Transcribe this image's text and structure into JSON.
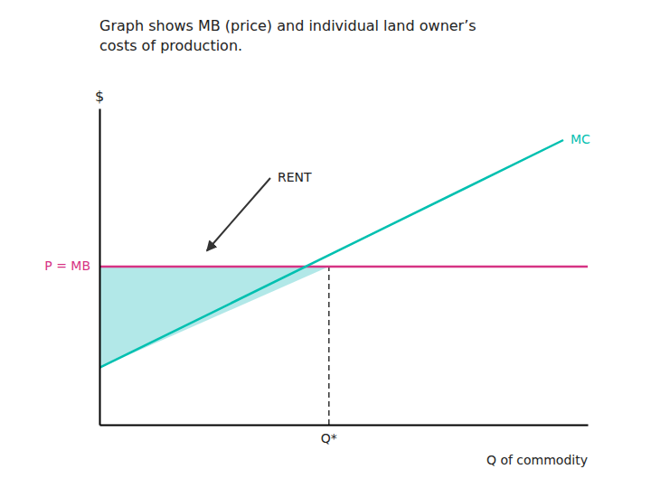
{
  "chart_data": {
    "type": "line",
    "title": [
      "Graph shows MB (price) and individual land owner’s",
      "costs of production."
    ],
    "x_label": "Q of commodity",
    "y_label": "$",
    "xlim": [
      0,
      10
    ],
    "ylim": [
      0,
      10
    ],
    "tick_labels": false,
    "series": [
      {
        "name": "P = MB",
        "color": "#d63384",
        "line_style": "solid",
        "x": [
          0,
          10
        ],
        "values": [
          5.0,
          5.0
        ]
      },
      {
        "name": "MC",
        "color": "#00c0b0",
        "line_style": "solid",
        "x": [
          0.0,
          9.5
        ],
        "values": [
          1.8,
          9.0
        ]
      }
    ],
    "areas": [
      {
        "color": "#7fd8d8",
        "x": [
          0,
          0,
          4.7
        ],
        "values": [
          5.0,
          1.8,
          5.0
        ]
      }
    ],
    "vlines": [
      {
        "label": "Q*",
        "line_style": "dashed",
        "x": 4.7,
        "y": [
          0,
          5.0
        ]
      }
    ],
    "annotations": [
      {
        "text": "RENT",
        "x": 3.5,
        "y": 7.8,
        "arrow_x": 2.2,
        "arrow_y": 5.5
      }
    ]
  }
}
